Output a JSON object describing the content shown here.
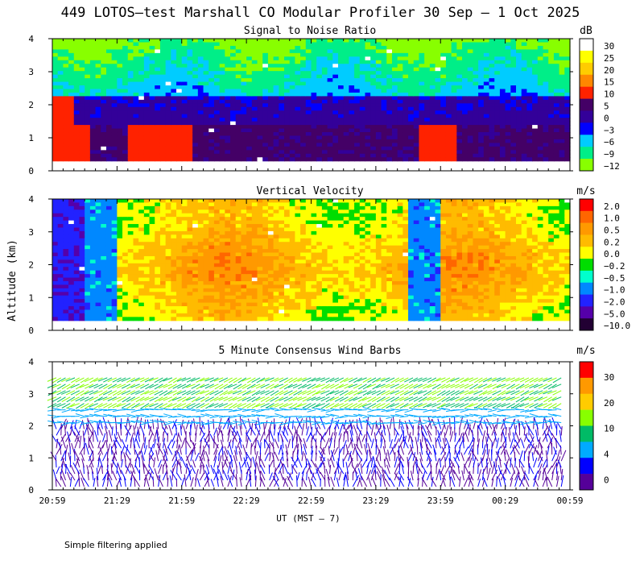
{
  "title": "449 LOTOS—test Marshall CO Modular Profiler 30 Sep —  1 Oct 2025",
  "footer_note": "Simple filtering applied",
  "chart_data": [
    {
      "type": "heatmap",
      "title": "Signal to Noise Ratio",
      "ylabel": "",
      "yticks": [
        "0",
        "1",
        "2",
        "3",
        "4"
      ],
      "ylim": [
        0,
        4
      ],
      "colorbar": {
        "unit": "dB",
        "labels": [
          "30",
          "25",
          "20",
          "15",
          "10",
          "5",
          "0",
          "−3",
          "−6",
          "−9",
          "−12"
        ],
        "colors": [
          "#ffffff",
          "#ffff00",
          "#ffcc00",
          "#ff8800",
          "#ff2200",
          "#440066",
          "#330099",
          "#0000ff",
          "#00ccff",
          "#00ee88",
          "#88ff00"
        ]
      }
    },
    {
      "type": "heatmap",
      "title": "Vertical Velocity",
      "ylabel": "Altitude (km)",
      "yticks": [
        "0",
        "1",
        "2",
        "3",
        "4"
      ],
      "ylim": [
        0,
        4
      ],
      "colorbar": {
        "unit": "m/s",
        "labels": [
          "2.0",
          "1.0",
          "0.5",
          "0.2",
          "0.0",
          "−0.2",
          "−0.5",
          "−1.0",
          "−2.0",
          "−5.0",
          "−10.0"
        ],
        "colors": [
          "#ff0000",
          "#ff6600",
          "#ff9900",
          "#ffbb00",
          "#ffff00",
          "#00dd00",
          "#00ffcc",
          "#0088ff",
          "#2222ff",
          "#5500aa",
          "#220033"
        ]
      }
    },
    {
      "type": "scatter",
      "title": "5 Minute Consensus Wind Barbs",
      "ylabel": "",
      "yticks": [
        "0",
        "1",
        "2",
        "3",
        "4"
      ],
      "ylim": [
        0,
        4
      ],
      "xlabel": "UT  (MST — 7)",
      "xticks": [
        "20:59",
        "21:29",
        "21:59",
        "22:29",
        "22:59",
        "23:29",
        "23:59",
        "00:29",
        "00:59"
      ],
      "colorbar": {
        "unit": "m/s",
        "labels": [
          "30",
          "20",
          "10",
          "4",
          "0"
        ],
        "colors": [
          "#ff0000",
          "#ff9900",
          "#ffcc00",
          "#88ff00",
          "#00bb66",
          "#00aaff",
          "#0000ff",
          "#550099"
        ]
      }
    }
  ]
}
